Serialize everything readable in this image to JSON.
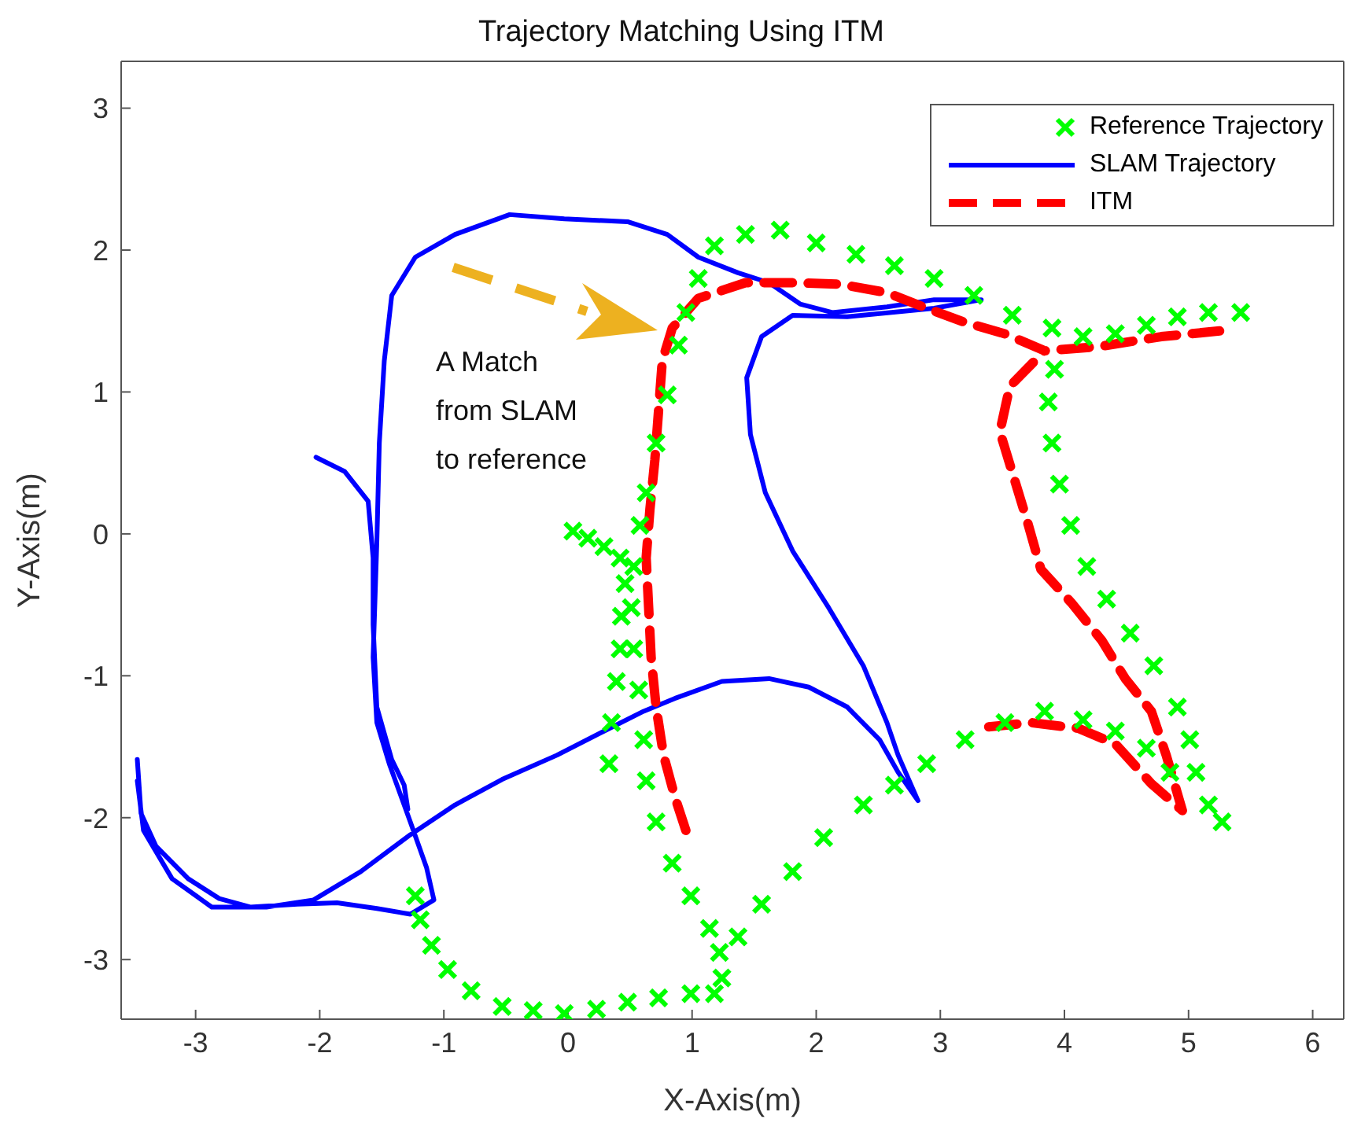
{
  "chart_data": {
    "type": "line",
    "title": "Trajectory Matching Using ITM",
    "xlabel": "X-Axis(m)",
    "ylabel": "Y-Axis(m)",
    "xlim": [
      -3.6,
      6.25
    ],
    "ylim": [
      -3.42,
      3.33
    ],
    "xticks": [
      -3,
      -2,
      -1,
      0,
      1,
      2,
      3,
      4,
      5,
      6
    ],
    "yticks": [
      -3,
      -2,
      -1,
      0,
      1,
      2,
      3
    ],
    "legend": "top right",
    "annotations": [
      "A Match from SLAM to reference"
    ],
    "series": [
      {
        "name": "Reference Trajectory",
        "type": "scatter",
        "marker": "cross",
        "color": "#00ff00",
        "x": [
          0.04,
          0.16,
          0.29,
          0.42,
          0.46,
          0.43,
          0.42,
          0.39,
          0.35,
          0.33,
          1.18,
          1.05,
          0.95,
          0.89,
          0.8,
          0.71,
          0.63,
          0.58,
          0.53,
          0.51,
          0.53,
          0.57,
          0.61,
          0.63,
          0.71,
          0.84,
          0.99,
          1.14,
          1.22,
          1.24,
          1.18,
          0.99,
          0.73,
          0.48,
          0.23,
          -0.03,
          -0.28,
          -0.53,
          -0.78,
          -0.97,
          -1.1,
          -1.19,
          -1.23,
          1.43,
          1.71,
          2.0,
          2.32,
          2.63,
          2.95,
          3.27,
          3.58,
          3.9,
          4.15,
          4.41,
          4.66,
          4.91,
          5.16,
          5.42,
          3.92,
          3.87,
          3.9,
          3.96,
          4.05,
          4.18,
          4.34,
          4.53,
          4.72,
          4.91,
          5.01,
          5.06,
          5.16,
          5.27,
          1.37,
          1.56,
          1.81,
          2.06,
          2.38,
          2.63,
          2.89,
          3.2,
          3.52,
          3.84,
          4.15,
          4.41,
          4.66,
          4.85
        ],
        "values": [
          0.02,
          -0.03,
          -0.09,
          -0.17,
          -0.35,
          -0.58,
          -0.81,
          -1.04,
          -1.33,
          -1.62,
          2.03,
          1.8,
          1.56,
          1.33,
          0.98,
          0.64,
          0.29,
          0.06,
          -0.23,
          -0.52,
          -0.81,
          -1.1,
          -1.45,
          -1.74,
          -2.03,
          -2.32,
          -2.55,
          -2.78,
          -2.95,
          -3.13,
          -3.24,
          -3.24,
          -3.27,
          -3.3,
          -3.35,
          -3.38,
          -3.36,
          -3.33,
          -3.22,
          -3.07,
          -2.9,
          -2.72,
          -2.55,
          2.11,
          2.14,
          2.05,
          1.97,
          1.89,
          1.8,
          1.68,
          1.54,
          1.45,
          1.39,
          1.41,
          1.47,
          1.53,
          1.56,
          1.56,
          1.16,
          0.93,
          0.64,
          0.35,
          0.06,
          -0.23,
          -0.46,
          -0.7,
          -0.93,
          -1.22,
          -1.45,
          -1.68,
          -1.91,
          -2.03,
          -2.84,
          -2.61,
          -2.38,
          -2.14,
          -1.91,
          -1.77,
          -1.62,
          -1.45,
          -1.33,
          -1.25,
          -1.31,
          -1.39,
          -1.51,
          -1.68
        ]
      },
      {
        "name": "SLAM Trajectory",
        "line_style": "solid",
        "color": "#0000ff",
        "x": [
          -3.47,
          -3.44,
          -3.32,
          -3.06,
          -2.81,
          -2.56,
          -2.18,
          -1.86,
          -1.54,
          -1.27,
          -1.08,
          -1.14,
          -1.27,
          -1.44,
          -1.54,
          -1.57,
          -1.54,
          -1.52,
          -1.48,
          -1.42,
          -1.23,
          -0.91,
          -0.47,
          -0.03,
          0.48,
          0.8,
          1.05,
          1.37,
          1.62,
          1.87,
          2.13,
          2.57,
          2.95,
          3.33,
          2.95,
          2.25,
          1.81,
          1.56,
          1.44,
          1.47,
          1.59,
          1.81,
          2.1,
          2.38,
          2.57,
          2.66,
          2.82,
          2.66,
          2.51,
          2.25,
          1.94,
          1.62,
          1.24,
          0.86,
          0.61,
          0.29,
          -0.09,
          -0.53,
          -0.91,
          -1.27,
          -1.67,
          -2.05,
          -2.43,
          -2.87,
          -3.19,
          -3.42,
          -3.47,
          null,
          -2.03,
          -1.8,
          -1.61,
          -1.57,
          -1.57,
          -1.54,
          -1.42,
          -1.32,
          -1.29
        ],
        "values": [
          -1.59,
          -1.97,
          -2.2,
          -2.43,
          -2.57,
          -2.63,
          -2.61,
          -2.6,
          -2.64,
          -2.68,
          -2.58,
          -2.35,
          -2.03,
          -1.62,
          -1.33,
          -0.87,
          -0.06,
          0.64,
          1.22,
          1.68,
          1.95,
          2.11,
          2.25,
          2.22,
          2.2,
          2.11,
          1.95,
          1.84,
          1.77,
          1.62,
          1.56,
          1.6,
          1.65,
          1.65,
          1.59,
          1.53,
          1.54,
          1.39,
          1.1,
          0.7,
          0.29,
          -0.12,
          -0.52,
          -0.93,
          -1.33,
          -1.56,
          -1.88,
          -1.68,
          -1.45,
          -1.22,
          -1.08,
          -1.02,
          -1.04,
          -1.16,
          -1.25,
          -1.39,
          -1.56,
          -1.73,
          -1.91,
          -2.12,
          -2.38,
          -2.58,
          -2.63,
          -2.63,
          -2.43,
          -2.09,
          -1.74,
          null,
          0.54,
          0.44,
          0.23,
          -0.17,
          -0.64,
          -1.22,
          -1.59,
          -1.77,
          -1.94
        ]
      },
      {
        "name": "ITM",
        "line_style": "dashed",
        "color": "#ff0000",
        "x": [
          0.95,
          0.86,
          0.77,
          0.71,
          0.67,
          0.65,
          0.63,
          0.66,
          0.7,
          0.73,
          0.76,
          0.84,
          1.05,
          1.43,
          1.81,
          2.19,
          2.57,
          2.89,
          3.2,
          3.52,
          3.84,
          4.28,
          4.78,
          5.25,
          null,
          3.39,
          3.73,
          4.11,
          4.41,
          4.7,
          4.95,
          4.82,
          4.7,
          4.49,
          4.3,
          4.06,
          3.81,
          3.71,
          3.48,
          3.56,
          3.84
        ],
        "values": [
          -2.09,
          -1.85,
          -1.56,
          -1.22,
          -0.87,
          -0.52,
          -0.17,
          0.17,
          0.52,
          0.87,
          1.22,
          1.45,
          1.66,
          1.77,
          1.77,
          1.76,
          1.7,
          1.59,
          1.49,
          1.41,
          1.29,
          1.32,
          1.39,
          1.43,
          null,
          -1.36,
          -1.33,
          -1.37,
          -1.48,
          -1.76,
          -1.95,
          -1.56,
          -1.25,
          -1.02,
          -0.75,
          -0.49,
          -0.25,
          0.06,
          0.72,
          1.04,
          1.29
        ]
      }
    ]
  }
}
